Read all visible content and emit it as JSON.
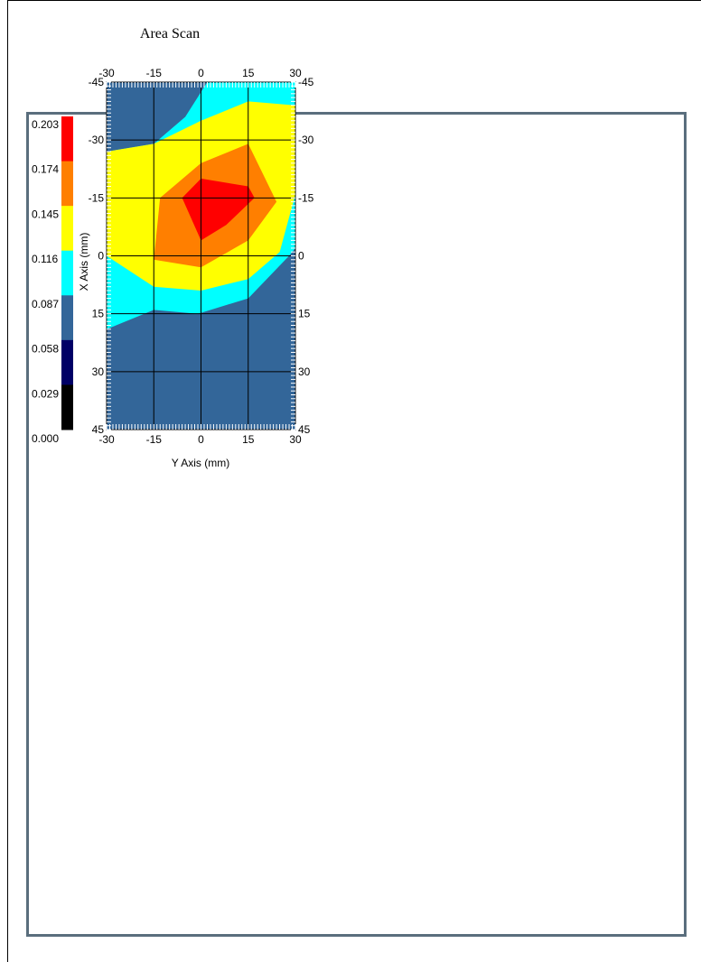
{
  "chart_data": {
    "type": "heatmap",
    "title": "Area Scan",
    "xlabel": "Y Axis (mm)",
    "ylabel": "X Axis (mm)",
    "x_ticks": [
      "-30",
      "-15",
      "0",
      "15",
      "30"
    ],
    "y_ticks": [
      "-45",
      "-30",
      "-15",
      "0",
      "15",
      "30",
      "45"
    ],
    "xlim": [
      -30,
      30
    ],
    "ylim": [
      -45,
      45
    ],
    "y_inverted": true,
    "grid": true,
    "colorbar": {
      "placement": "left",
      "labels": [
        "0.203",
        "0.174",
        "0.145",
        "0.116",
        "0.087",
        "0.058",
        "0.029",
        "0.000"
      ],
      "colors": [
        "#ff0000",
        "#ff7f00",
        "#ffff00",
        "#00ffff",
        "#336699",
        "#000066",
        "#000000"
      ]
    },
    "contours": [
      {
        "level": "0.087",
        "color": "#336699",
        "points": [
          [
            -30,
            -45
          ],
          [
            30,
            -45
          ],
          [
            30,
            45
          ],
          [
            -30,
            45
          ]
        ]
      },
      {
        "level": "0.116",
        "color": "#00ffff",
        "points": [
          [
            2,
            -45
          ],
          [
            30,
            -45
          ],
          [
            30,
            -2
          ],
          [
            28,
            0
          ],
          [
            15,
            11
          ],
          [
            -1,
            15
          ],
          [
            -15,
            14
          ],
          [
            -30,
            19
          ],
          [
            -30,
            -27
          ],
          [
            -15,
            -29
          ],
          [
            -5,
            -36
          ]
        ]
      },
      {
        "level": "0.145",
        "color": "#ffff00",
        "points": [
          [
            15,
            -40
          ],
          [
            30,
            -39
          ],
          [
            30,
            -16
          ],
          [
            25,
            -1
          ],
          [
            15,
            6
          ],
          [
            0,
            9
          ],
          [
            -15,
            8
          ],
          [
            -30,
            0
          ],
          [
            -30,
            -27
          ],
          [
            -15,
            -29
          ],
          [
            0,
            -35
          ]
        ]
      },
      {
        "level": "0.174",
        "color": "#ff7f00",
        "points": [
          [
            15,
            -29
          ],
          [
            24,
            -14
          ],
          [
            15,
            -4
          ],
          [
            0,
            3
          ],
          [
            -15,
            1
          ],
          [
            -13,
            -15
          ],
          [
            0,
            -24
          ]
        ]
      },
      {
        "level": "0.203",
        "color": "#ff0000",
        "points": [
          [
            0,
            -20
          ],
          [
            15,
            -18
          ],
          [
            17,
            -15
          ],
          [
            8,
            -8
          ],
          [
            0,
            -4
          ],
          [
            -6,
            -15
          ]
        ]
      }
    ]
  }
}
